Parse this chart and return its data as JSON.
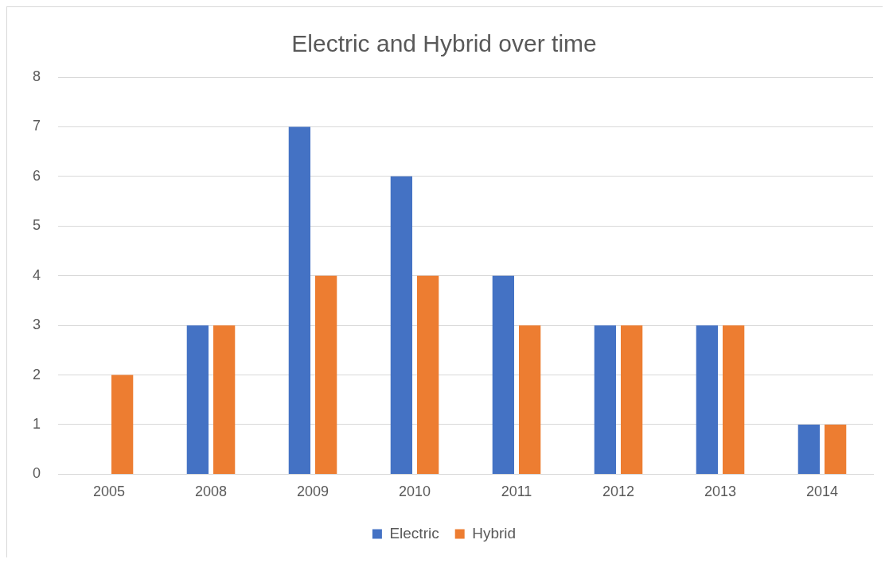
{
  "chart_data": {
    "type": "bar",
    "title": "Electric and Hybrid over time",
    "categories": [
      "2005",
      "2008",
      "2009",
      "2010",
      "2011",
      "2012",
      "2013",
      "2014"
    ],
    "series": [
      {
        "name": "Electric",
        "color": "#4472c4",
        "values": [
          0,
          3,
          7,
          6,
          4,
          3,
          3,
          1
        ]
      },
      {
        "name": "Hybrid",
        "color": "#ed7d31",
        "values": [
          2,
          3,
          4,
          4,
          3,
          3,
          3,
          1
        ]
      }
    ],
    "ylim": [
      0,
      8
    ],
    "yticks": [
      0,
      1,
      2,
      3,
      4,
      5,
      6,
      7,
      8
    ],
    "grid": "y",
    "legend": "bottom"
  }
}
